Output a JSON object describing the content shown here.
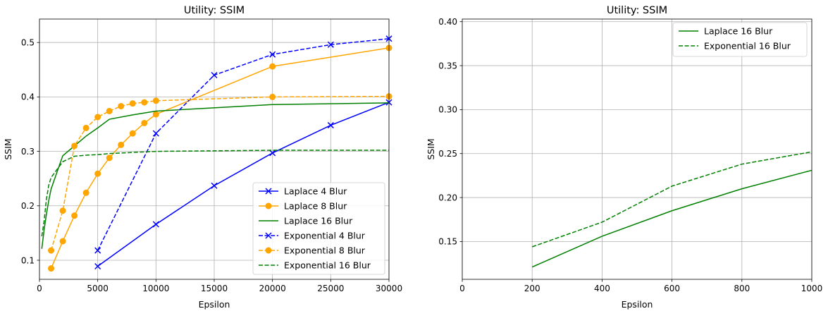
{
  "chart_data": [
    {
      "type": "line",
      "title": "Utility: SSIM",
      "xlabel": "Epsilon",
      "ylabel": "SSIM",
      "xlim": [
        0,
        30000
      ],
      "ylim": [
        0.065,
        0.543
      ],
      "xticks": [
        0,
        5000,
        10000,
        15000,
        20000,
        25000,
        30000
      ],
      "yticks": [
        0.1,
        0.2,
        0.3,
        0.4,
        0.5
      ],
      "grid": true,
      "legend_position": "lower-right",
      "series": [
        {
          "name": "Laplace 4 Blur",
          "color": "#0000ff",
          "dash": "solid",
          "marker": "x",
          "x": [
            5000,
            10000,
            15000,
            20000,
            25000,
            30000
          ],
          "y": [
            0.089,
            0.166,
            0.237,
            0.297,
            0.348,
            0.39
          ]
        },
        {
          "name": "Laplace 8 Blur",
          "color": "#ffa500",
          "dash": "solid",
          "marker": "o",
          "x": [
            1000,
            2000,
            3000,
            4000,
            5000,
            6000,
            7000,
            8000,
            9000,
            10000,
            20000,
            30000
          ],
          "y": [
            0.085,
            0.135,
            0.182,
            0.224,
            0.259,
            0.288,
            0.312,
            0.333,
            0.352,
            0.368,
            0.456,
            0.49
          ]
        },
        {
          "name": "Laplace 16 Blur",
          "color": "#008000",
          "dash": "solid",
          "marker": "",
          "x": [
            200,
            400,
            600,
            800,
            1000,
            2000,
            3000,
            4000,
            5000,
            6000,
            8000,
            10000,
            20000,
            30000
          ],
          "y": [
            0.121,
            0.156,
            0.185,
            0.21,
            0.231,
            0.292,
            0.31,
            0.328,
            0.343,
            0.359,
            0.367,
            0.374,
            0.386,
            0.389
          ]
        },
        {
          "name": "Exponential 4 Blur",
          "color": "#0000ff",
          "dash": "dashed",
          "marker": "x",
          "x": [
            5000,
            10000,
            15000,
            20000,
            25000,
            30000
          ],
          "y": [
            0.118,
            0.333,
            0.44,
            0.478,
            0.496,
            0.507
          ]
        },
        {
          "name": "Exponential 8 Blur",
          "color": "#ffa500",
          "dash": "dashed",
          "marker": "o",
          "x": [
            1000,
            2000,
            3000,
            4000,
            5000,
            6000,
            7000,
            8000,
            9000,
            10000,
            20000,
            30000
          ],
          "y": [
            0.118,
            0.191,
            0.31,
            0.343,
            0.363,
            0.374,
            0.383,
            0.388,
            0.39,
            0.393,
            0.4,
            0.401
          ]
        },
        {
          "name": "Exponential 16 Blur",
          "color": "#008000",
          "dash": "dashed",
          "marker": "",
          "x": [
            200,
            400,
            600,
            800,
            1000,
            2000,
            3000,
            4000,
            5000,
            6000,
            8000,
            10000,
            20000,
            30000
          ],
          "y": [
            0.144,
            0.172,
            0.213,
            0.238,
            0.252,
            0.281,
            0.291,
            0.293,
            0.294,
            0.296,
            0.298,
            0.3,
            0.302,
            0.302
          ]
        }
      ]
    },
    {
      "type": "line",
      "title": "Utility: SSIM",
      "xlabel": "Epsilon",
      "ylabel": "SSIM",
      "xlim": [
        0,
        1000
      ],
      "ylim": [
        0.107,
        0.403
      ],
      "xticks": [
        0,
        200,
        400,
        600,
        800,
        1000
      ],
      "yticks": [
        0.15,
        0.2,
        0.25,
        0.3,
        0.35,
        0.4
      ],
      "yformat": 2,
      "grid": true,
      "legend_position": "upper-right",
      "series": [
        {
          "name": "Laplace 16 Blur",
          "color": "#008000",
          "dash": "solid",
          "marker": "",
          "x": [
            200,
            400,
            600,
            800,
            1000
          ],
          "y": [
            0.121,
            0.156,
            0.185,
            0.21,
            0.231
          ]
        },
        {
          "name": "Exponential 16 Blur",
          "color": "#008000",
          "dash": "dashed",
          "marker": "",
          "x": [
            200,
            400,
            600,
            800,
            1000
          ],
          "y": [
            0.144,
            0.172,
            0.213,
            0.238,
            0.252
          ]
        }
      ]
    }
  ]
}
